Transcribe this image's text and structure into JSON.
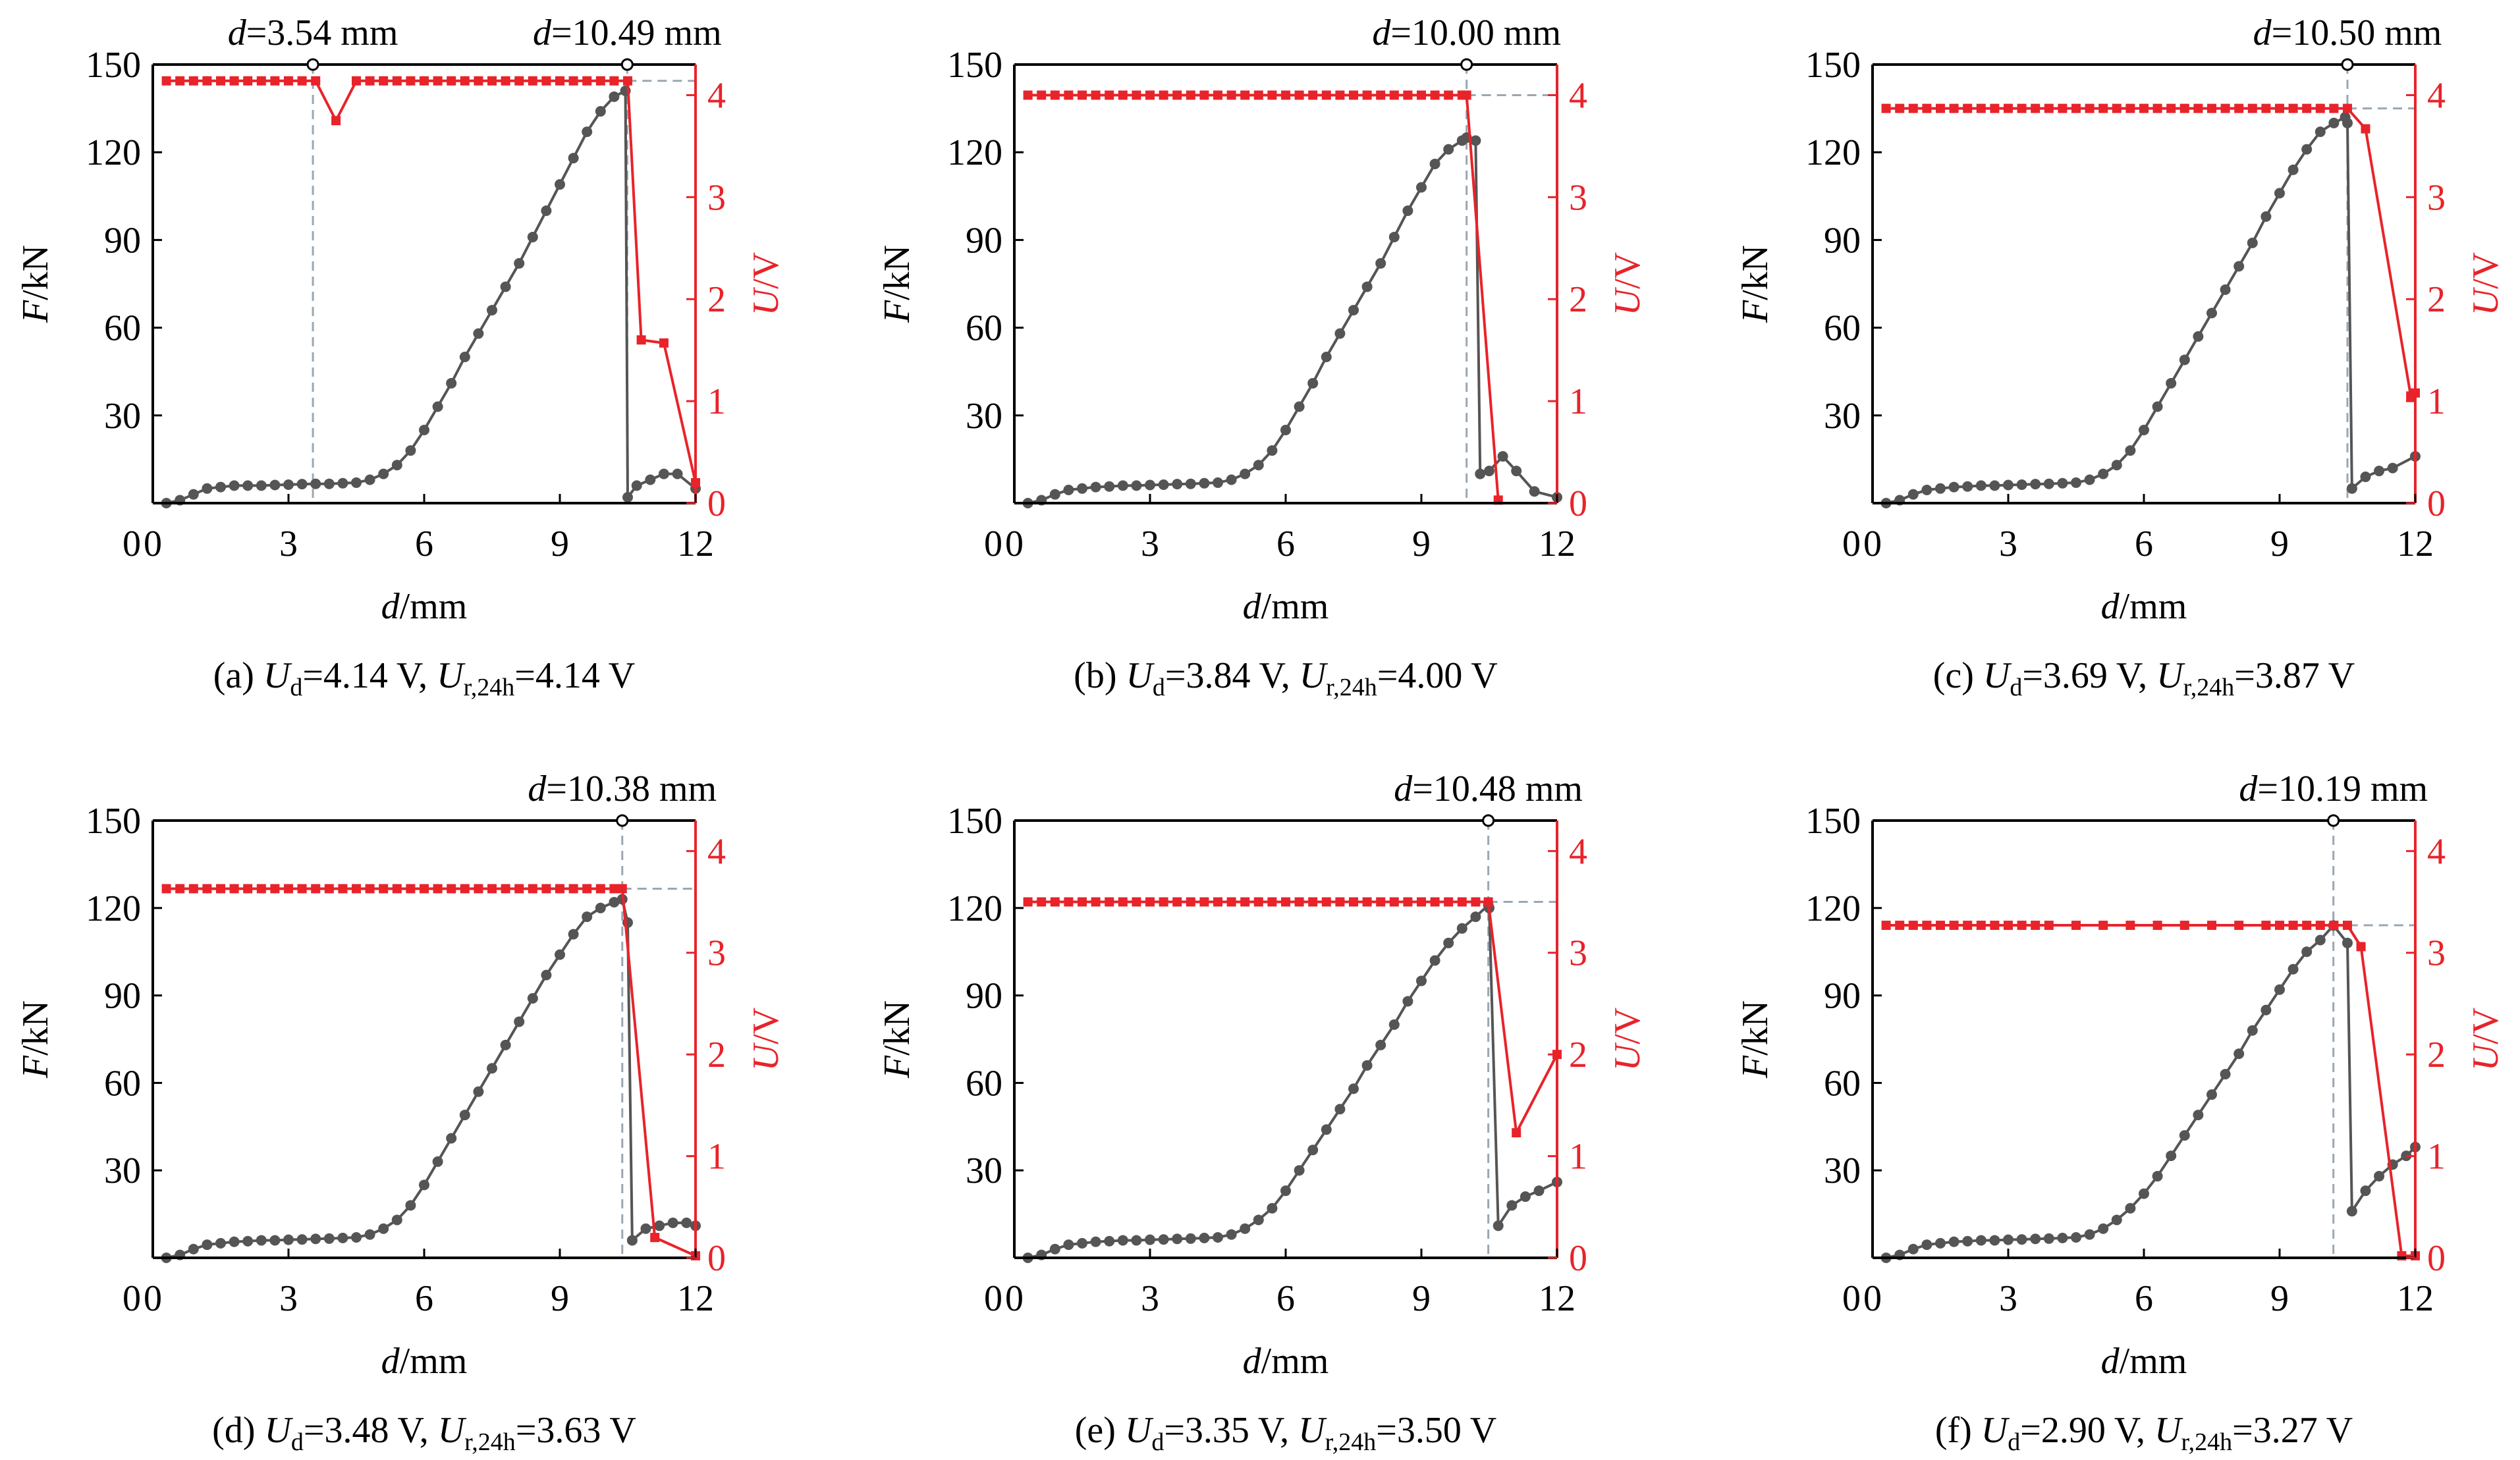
{
  "axes": {
    "x_label_var": "d",
    "x_label_unit": "/mm",
    "y_left_label_var": "F",
    "y_left_label_unit": "/kN",
    "y_right_label_var": "U",
    "y_right_label_unit": "/V",
    "x_ticks": [
      0,
      3,
      6,
      9,
      12
    ],
    "y_left_ticks": [
      30,
      60,
      90,
      120,
      150
    ],
    "y_right_ticks": [
      0,
      1,
      2,
      3,
      4
    ],
    "y_left_zero_label": "0"
  },
  "colors": {
    "force": "#555555",
    "voltage": "#e8232a",
    "guide": "#9aa7b2",
    "frame": "#000000"
  },
  "chart_data": [
    {
      "type": "line",
      "panel": "a",
      "caption_prefix": "(a) ",
      "ud": "4.14 V",
      "ur": "4.14 V",
      "xlim": [
        0,
        12
      ],
      "ylim_left": [
        0,
        150
      ],
      "ylim_right": [
        0,
        4.3
      ],
      "annotations": [
        {
          "text": "3.54 mm",
          "x": 3.54
        },
        {
          "text": "10.49 mm",
          "x": 10.49
        }
      ],
      "force": {
        "x": [
          0.3,
          0.6,
          0.9,
          1.2,
          1.5,
          1.8,
          2.1,
          2.4,
          2.7,
          3.0,
          3.3,
          3.6,
          3.9,
          4.2,
          4.5,
          4.8,
          5.1,
          5.4,
          5.7,
          6.0,
          6.3,
          6.6,
          6.9,
          7.2,
          7.5,
          7.8,
          8.1,
          8.4,
          8.7,
          9.0,
          9.3,
          9.6,
          9.9,
          10.2,
          10.45,
          10.5,
          10.7,
          11.0,
          11.3,
          11.6,
          12.0
        ],
        "y": [
          0,
          1,
          3,
          5,
          5.5,
          6,
          6,
          6,
          6.2,
          6.3,
          6.5,
          6.6,
          6.6,
          6.8,
          7,
          8,
          10,
          13,
          18,
          25,
          33,
          41,
          50,
          58,
          66,
          74,
          82,
          91,
          100,
          109,
          118,
          127,
          134,
          139,
          141,
          2,
          6,
          8,
          10,
          10,
          5
        ]
      },
      "voltage": {
        "x": [
          0.3,
          0.6,
          0.9,
          1.2,
          1.5,
          1.8,
          2.1,
          2.4,
          2.7,
          3.0,
          3.3,
          3.6,
          4.05,
          4.5,
          4.8,
          5.1,
          5.4,
          5.7,
          6.0,
          6.3,
          6.6,
          6.9,
          7.2,
          7.5,
          7.8,
          8.1,
          8.4,
          8.7,
          9.0,
          9.3,
          9.6,
          9.9,
          10.2,
          10.5,
          10.8,
          11.3,
          12.0
        ],
        "y": [
          4.14,
          4.14,
          4.14,
          4.14,
          4.14,
          4.14,
          4.14,
          4.14,
          4.14,
          4.14,
          4.14,
          4.14,
          3.75,
          4.14,
          4.14,
          4.14,
          4.14,
          4.14,
          4.14,
          4.14,
          4.14,
          4.14,
          4.14,
          4.14,
          4.14,
          4.14,
          4.14,
          4.14,
          4.14,
          4.14,
          4.14,
          4.14,
          4.14,
          4.14,
          1.6,
          1.57,
          0.2
        ]
      }
    },
    {
      "type": "line",
      "panel": "b",
      "caption_prefix": "(b) ",
      "ud": "3.84 V",
      "ur": "4.00 V",
      "xlim": [
        0,
        12
      ],
      "ylim_left": [
        0,
        150
      ],
      "ylim_right": [
        0,
        4.3
      ],
      "annotations": [
        {
          "text": "10.00 mm",
          "x": 10.0
        }
      ],
      "force": {
        "x": [
          0.3,
          0.6,
          0.9,
          1.2,
          1.5,
          1.8,
          2.1,
          2.4,
          2.7,
          3.0,
          3.3,
          3.6,
          3.9,
          4.2,
          4.5,
          4.8,
          5.1,
          5.4,
          5.7,
          6.0,
          6.3,
          6.6,
          6.9,
          7.2,
          7.5,
          7.8,
          8.1,
          8.4,
          8.7,
          9.0,
          9.3,
          9.6,
          9.9,
          10.0,
          10.2,
          10.3,
          10.5,
          10.8,
          11.1,
          11.5,
          12.0
        ],
        "y": [
          0,
          1,
          3,
          4.5,
          5,
          5.5,
          5.7,
          6,
          6,
          6.2,
          6.3,
          6.5,
          6.6,
          6.8,
          7,
          8,
          10,
          13,
          18,
          25,
          33,
          41,
          50,
          58,
          66,
          74,
          82,
          91,
          100,
          108,
          116,
          121,
          124,
          125,
          124,
          10,
          11,
          16,
          11,
          4,
          2
        ]
      },
      "voltage": {
        "x": [
          0.3,
          0.6,
          0.9,
          1.2,
          1.5,
          1.8,
          2.1,
          2.4,
          2.7,
          3.0,
          3.3,
          3.6,
          3.9,
          4.2,
          4.5,
          4.8,
          5.1,
          5.4,
          5.7,
          6.0,
          6.3,
          6.6,
          6.9,
          7.2,
          7.5,
          7.8,
          8.1,
          8.4,
          8.7,
          9.0,
          9.3,
          9.6,
          9.9,
          10.0,
          10.7
        ],
        "y": [
          4.0,
          4.0,
          4.0,
          4.0,
          4.0,
          4.0,
          4.0,
          4.0,
          4.0,
          4.0,
          4.0,
          4.0,
          4.0,
          4.0,
          4.0,
          4.0,
          4.0,
          4.0,
          4.0,
          4.0,
          4.0,
          4.0,
          4.0,
          4.0,
          4.0,
          4.0,
          4.0,
          4.0,
          4.0,
          4.0,
          4.0,
          4.0,
          4.0,
          4.0,
          0.03
        ]
      }
    },
    {
      "type": "line",
      "panel": "c",
      "caption_prefix": "(c) ",
      "ud": "3.69 V",
      "ur": "3.87 V",
      "xlim": [
        0,
        12
      ],
      "ylim_left": [
        0,
        150
      ],
      "ylim_right": [
        0,
        4.3
      ],
      "annotations": [
        {
          "text": "10.50 mm",
          "x": 10.5
        }
      ],
      "force": {
        "x": [
          0.3,
          0.6,
          0.9,
          1.2,
          1.5,
          1.8,
          2.1,
          2.4,
          2.7,
          3.0,
          3.3,
          3.6,
          3.9,
          4.2,
          4.5,
          4.8,
          5.1,
          5.4,
          5.7,
          6.0,
          6.3,
          6.6,
          6.9,
          7.2,
          7.5,
          7.8,
          8.1,
          8.4,
          8.7,
          9.0,
          9.3,
          9.6,
          9.9,
          10.2,
          10.45,
          10.5,
          10.6,
          10.9,
          11.2,
          11.5,
          12.0
        ],
        "y": [
          0,
          1,
          3,
          4.5,
          5,
          5.5,
          5.7,
          6,
          6,
          6.2,
          6.3,
          6.5,
          6.6,
          6.8,
          7,
          8,
          10,
          13,
          18,
          25,
          33,
          41,
          49,
          57,
          65,
          73,
          81,
          89,
          98,
          106,
          114,
          121,
          127,
          130,
          132,
          130,
          5,
          9,
          11,
          12,
          16
        ]
      },
      "voltage": {
        "x": [
          0.3,
          0.6,
          0.9,
          1.2,
          1.5,
          1.8,
          2.1,
          2.4,
          2.7,
          3.0,
          3.3,
          3.6,
          3.9,
          4.2,
          4.5,
          4.8,
          5.1,
          5.4,
          5.7,
          6.0,
          6.3,
          6.6,
          6.9,
          7.2,
          7.5,
          7.8,
          8.1,
          8.4,
          8.7,
          9.0,
          9.3,
          9.6,
          9.9,
          10.2,
          10.5,
          10.9,
          11.9,
          12.0
        ],
        "y": [
          3.87,
          3.87,
          3.87,
          3.87,
          3.87,
          3.87,
          3.87,
          3.87,
          3.87,
          3.87,
          3.87,
          3.87,
          3.87,
          3.87,
          3.87,
          3.87,
          3.87,
          3.87,
          3.87,
          3.87,
          3.87,
          3.87,
          3.87,
          3.87,
          3.87,
          3.87,
          3.87,
          3.87,
          3.87,
          3.87,
          3.87,
          3.87,
          3.87,
          3.87,
          3.87,
          3.67,
          1.05,
          1.08
        ]
      }
    },
    {
      "type": "line",
      "panel": "d",
      "caption_prefix": "(d) ",
      "ud": "3.48 V",
      "ur": "3.63 V",
      "xlim": [
        0,
        12
      ],
      "ylim_left": [
        0,
        150
      ],
      "ylim_right": [
        0,
        4.3
      ],
      "annotations": [
        {
          "text": "10.38 mm",
          "x": 10.38
        }
      ],
      "force": {
        "x": [
          0.3,
          0.6,
          0.9,
          1.2,
          1.5,
          1.8,
          2.1,
          2.4,
          2.7,
          3.0,
          3.3,
          3.6,
          3.9,
          4.2,
          4.5,
          4.8,
          5.1,
          5.4,
          5.7,
          6.0,
          6.3,
          6.6,
          6.9,
          7.2,
          7.5,
          7.8,
          8.1,
          8.4,
          8.7,
          9.0,
          9.3,
          9.6,
          9.9,
          10.2,
          10.38,
          10.5,
          10.6,
          10.9,
          11.2,
          11.5,
          11.8,
          12.0
        ],
        "y": [
          0,
          1,
          3,
          4.5,
          5,
          5.5,
          5.7,
          6,
          6,
          6.2,
          6.3,
          6.5,
          6.6,
          6.8,
          7,
          8,
          10,
          13,
          18,
          25,
          33,
          41,
          49,
          57,
          65,
          73,
          81,
          89,
          97,
          104,
          111,
          117,
          120,
          122,
          123,
          115,
          6,
          10,
          11,
          12,
          12,
          11
        ]
      },
      "voltage": {
        "x": [
          0.3,
          0.6,
          0.9,
          1.2,
          1.5,
          1.8,
          2.1,
          2.4,
          2.7,
          3.0,
          3.3,
          3.6,
          3.9,
          4.2,
          4.5,
          4.8,
          5.1,
          5.4,
          5.7,
          6.0,
          6.3,
          6.6,
          6.9,
          7.2,
          7.5,
          7.8,
          8.1,
          8.4,
          8.7,
          9.0,
          9.3,
          9.6,
          9.9,
          10.2,
          10.38,
          11.1,
          12.0
        ],
        "y": [
          3.63,
          3.63,
          3.63,
          3.63,
          3.63,
          3.63,
          3.63,
          3.63,
          3.63,
          3.63,
          3.63,
          3.63,
          3.63,
          3.63,
          3.63,
          3.63,
          3.63,
          3.63,
          3.63,
          3.63,
          3.63,
          3.63,
          3.63,
          3.63,
          3.63,
          3.63,
          3.63,
          3.63,
          3.63,
          3.63,
          3.63,
          3.63,
          3.63,
          3.63,
          3.63,
          0.2,
          0.02
        ]
      }
    },
    {
      "type": "line",
      "panel": "e",
      "caption_prefix": "(e) ",
      "ud": "3.35 V",
      "ur": "3.50 V",
      "xlim": [
        0,
        12
      ],
      "ylim_left": [
        0,
        150
      ],
      "ylim_right": [
        0,
        4.3
      ],
      "annotations": [
        {
          "text": "10.48 mm",
          "x": 10.48
        }
      ],
      "force": {
        "x": [
          0.3,
          0.6,
          0.9,
          1.2,
          1.5,
          1.8,
          2.1,
          2.4,
          2.7,
          3.0,
          3.3,
          3.6,
          3.9,
          4.2,
          4.5,
          4.8,
          5.1,
          5.4,
          5.7,
          6.0,
          6.3,
          6.6,
          6.9,
          7.2,
          7.5,
          7.8,
          8.1,
          8.4,
          8.7,
          9.0,
          9.3,
          9.6,
          9.9,
          10.2,
          10.48,
          10.5,
          10.7,
          11.0,
          11.3,
          11.6,
          12.0
        ],
        "y": [
          0,
          1,
          3,
          4.5,
          5,
          5.5,
          5.7,
          6,
          6,
          6.2,
          6.3,
          6.5,
          6.6,
          6.8,
          7,
          8,
          10,
          13,
          17,
          23,
          30,
          37,
          44,
          51,
          58,
          66,
          73,
          80,
          88,
          95,
          102,
          108,
          113,
          117,
          121,
          120,
          11,
          18,
          21,
          23,
          26
        ]
      },
      "voltage": {
        "x": [
          0.3,
          0.6,
          0.9,
          1.2,
          1.5,
          1.8,
          2.1,
          2.4,
          2.7,
          3.0,
          3.3,
          3.6,
          3.9,
          4.2,
          4.5,
          4.8,
          5.1,
          5.4,
          5.7,
          6.0,
          6.3,
          6.6,
          6.9,
          7.2,
          7.5,
          7.8,
          8.1,
          8.4,
          8.7,
          9.0,
          9.3,
          9.6,
          9.9,
          10.2,
          10.48,
          11.1,
          12.0
        ],
        "y": [
          3.5,
          3.5,
          3.5,
          3.5,
          3.5,
          3.5,
          3.5,
          3.5,
          3.5,
          3.5,
          3.5,
          3.5,
          3.5,
          3.5,
          3.5,
          3.5,
          3.5,
          3.5,
          3.5,
          3.5,
          3.5,
          3.5,
          3.5,
          3.5,
          3.5,
          3.5,
          3.5,
          3.5,
          3.5,
          3.5,
          3.5,
          3.5,
          3.5,
          3.5,
          3.5,
          1.23,
          2.0
        ]
      }
    },
    {
      "type": "line",
      "panel": "f",
      "caption_prefix": "(f) ",
      "ud": "2.90 V",
      "ur": "3.27 V",
      "xlim": [
        0,
        12
      ],
      "ylim_left": [
        0,
        150
      ],
      "ylim_right": [
        0,
        4.3
      ],
      "annotations": [
        {
          "text": "10.19 mm",
          "x": 10.19
        }
      ],
      "force": {
        "x": [
          0.3,
          0.6,
          0.9,
          1.2,
          1.5,
          1.8,
          2.1,
          2.4,
          2.7,
          3.0,
          3.3,
          3.6,
          3.9,
          4.2,
          4.5,
          4.8,
          5.1,
          5.4,
          5.7,
          6.0,
          6.3,
          6.6,
          6.9,
          7.2,
          7.5,
          7.8,
          8.1,
          8.4,
          8.7,
          9.0,
          9.3,
          9.6,
          9.9,
          10.19,
          10.5,
          10.6,
          10.9,
          11.2,
          11.5,
          11.8,
          12.0
        ],
        "y": [
          0,
          1,
          3,
          4.5,
          5,
          5.5,
          5.7,
          6,
          6,
          6.2,
          6.3,
          6.5,
          6.6,
          6.8,
          7,
          8,
          10,
          13,
          17,
          22,
          28,
          35,
          42,
          49,
          56,
          63,
          70,
          78,
          85,
          92,
          99,
          105,
          109,
          114,
          108,
          16,
          23,
          28,
          32,
          35,
          38
        ]
      },
      "voltage": {
        "x": [
          0.3,
          0.6,
          0.9,
          1.2,
          1.5,
          1.8,
          2.1,
          2.4,
          2.7,
          3.0,
          3.3,
          3.6,
          3.9,
          4.5,
          5.1,
          5.7,
          6.3,
          6.9,
          7.5,
          8.1,
          8.7,
          9.0,
          9.3,
          9.6,
          9.9,
          10.2,
          10.5,
          10.8,
          11.7,
          12.0
        ],
        "y": [
          3.27,
          3.27,
          3.27,
          3.27,
          3.27,
          3.27,
          3.27,
          3.27,
          3.27,
          3.27,
          3.27,
          3.27,
          3.27,
          3.27,
          3.27,
          3.27,
          3.27,
          3.27,
          3.27,
          3.27,
          3.27,
          3.27,
          3.27,
          3.27,
          3.27,
          3.27,
          3.27,
          3.06,
          0.02,
          0.02
        ]
      }
    }
  ]
}
